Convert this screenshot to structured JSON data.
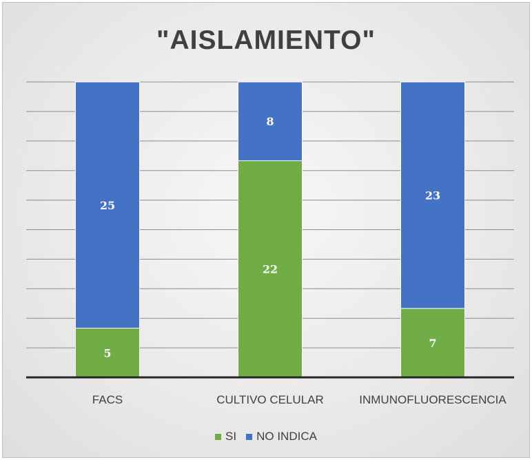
{
  "chart_data": {
    "type": "bar",
    "stacked": true,
    "title": "\"AISLAMIENTO\"",
    "categories": [
      "FACS",
      "CULTIVO CELULAR",
      "INMUNOFLUORESCENCIA"
    ],
    "series": [
      {
        "name": "SI",
        "values": [
          5,
          22,
          7
        ],
        "color": "#70ad47"
      },
      {
        "name": "NO INDICA",
        "values": [
          25,
          8,
          23
        ],
        "color": "#4472c4"
      }
    ],
    "ylim": [
      0,
      30
    ],
    "grid": true,
    "legend": "bottom",
    "data_labels": true
  }
}
